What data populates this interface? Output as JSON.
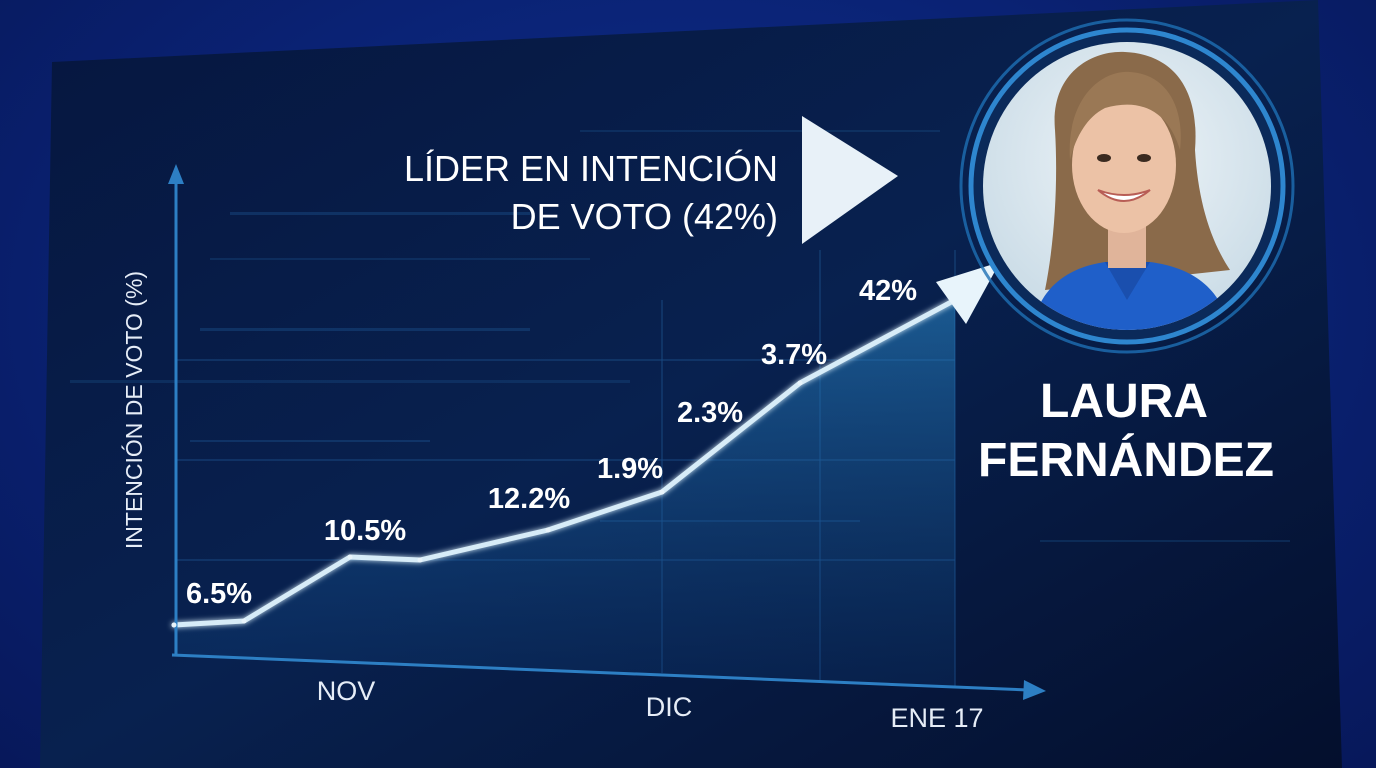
{
  "chart_data": {
    "type": "line",
    "x": [
      "",
      "NOV",
      "",
      "",
      "",
      "DIC",
      "",
      "ENE 17"
    ],
    "series": [
      {
        "values": [
          6.5,
          10.5,
          10.5,
          12.2,
          1.9,
          2.3,
          3.7,
          42
        ]
      }
    ],
    "data_labels": [
      "6.5%",
      "10.5%",
      "12.2%",
      "1.9%",
      "2.3%",
      "3.7%",
      "42%"
    ],
    "ylabel": "INTENCIÓN DE VOTO (%)",
    "xlabel": "",
    "tick_labels": [
      "NOV",
      "DIC",
      "ENE 17"
    ],
    "grid": true,
    "accent_color": "#cfe7f7",
    "background_color": "#061433"
  },
  "headline": {
    "line1": "LÍDER EN INTENCIÓN",
    "line2": "DE VOTO (42%)"
  },
  "candidate": {
    "name_line1": "LAURA",
    "name_line2": "FERNÁNDEZ",
    "photo": "portrait-photo"
  },
  "icons": {
    "pointer": "triangle-arrow-icon",
    "trend": "arrow-head-icon"
  }
}
